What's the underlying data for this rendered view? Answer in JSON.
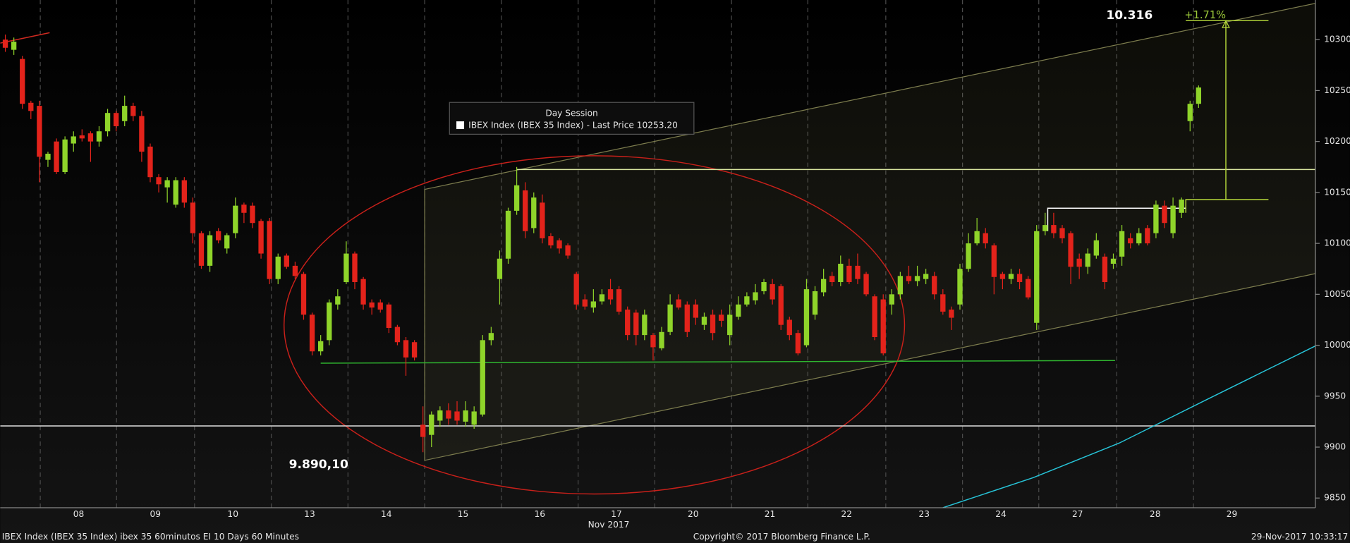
{
  "chart_data": {
    "type": "candlestick",
    "legend": {
      "title": "Day Session",
      "label": "IBEX Index (IBEX 35 Index) - Last Price 10253.20"
    },
    "annotations": [
      "10.316",
      "+1.71%",
      "9.890,10"
    ],
    "x_label": "Nov 2017",
    "footer": {
      "left": "IBEX Index (IBEX 35 Index) ibex 35 60minutos EI 10 Days 60 Minutes",
      "center": "Copyright© 2017 Bloomberg Finance L.P.",
      "right": "29-Nov-2017 10:33:17"
    },
    "colors": {
      "up": "#8fd42a",
      "down": "#e3231b"
    },
    "xlim": [
      -0.6,
      153.7
    ],
    "ylim": [
      9840.5,
      10338.9
    ],
    "yticks": [
      9850,
      9900,
      9950,
      10000,
      10050,
      10100,
      10150,
      10200,
      10250,
      10300
    ],
    "xticks": [
      {
        "value": 8.6,
        "label": "08"
      },
      {
        "value": 17.6,
        "label": "09"
      },
      {
        "value": 26.7,
        "label": "10"
      },
      {
        "value": 35.7,
        "label": "13"
      },
      {
        "value": 44.7,
        "label": "14"
      },
      {
        "value": 53.7,
        "label": "15"
      },
      {
        "value": 62.7,
        "label": "16"
      },
      {
        "value": 71.7,
        "label": "17"
      },
      {
        "value": 80.7,
        "label": "20"
      },
      {
        "value": 89.7,
        "label": "21"
      },
      {
        "value": 98.7,
        "label": "22"
      },
      {
        "value": 107.8,
        "label": "23"
      },
      {
        "value": 116.8,
        "label": "24"
      },
      {
        "value": 125.8,
        "label": "27"
      },
      {
        "value": 134.9,
        "label": "28"
      },
      {
        "value": 143.9,
        "label": "29"
      }
    ],
    "x": [
      0,
      1,
      2,
      3,
      4,
      5,
      6,
      7,
      8,
      9,
      10,
      11,
      12,
      13,
      14,
      15,
      16,
      17,
      18,
      19,
      20,
      21,
      22,
      23,
      24,
      25,
      26,
      27,
      28,
      29,
      30,
      31,
      32,
      33,
      34,
      35,
      36,
      37,
      38,
      39,
      40,
      41,
      42,
      43,
      44,
      45,
      46,
      47,
      48,
      49,
      50,
      51,
      52,
      53,
      54,
      55,
      56,
      57,
      58,
      59,
      60,
      61,
      62,
      63,
      64,
      65,
      66,
      67,
      68,
      69,
      70,
      71,
      72,
      73,
      74,
      75,
      76,
      77,
      78,
      79,
      80,
      81,
      82,
      83,
      84,
      85,
      86,
      87,
      88,
      89,
      90,
      91,
      92,
      93,
      94,
      95,
      96,
      97,
      98,
      99,
      100,
      101,
      102,
      103,
      104,
      105,
      106,
      107,
      108,
      109,
      110,
      111,
      112,
      113,
      114,
      115,
      116,
      117,
      118,
      119,
      120,
      121,
      122,
      123,
      124,
      125,
      126,
      127,
      128,
      129,
      130,
      131,
      132,
      133,
      134,
      135,
      136,
      137,
      138,
      139,
      140
    ],
    "open": [
      10300,
      10290,
      10281,
      10238,
      10235,
      10182,
      10200,
      10170,
      10198,
      10206,
      10208,
      10200,
      10210,
      10228,
      10220,
      10235,
      10225,
      10195,
      10165,
      10155,
      10138,
      10162,
      10140,
      10110,
      10078,
      10112,
      10095,
      10110,
      10138,
      10137,
      10122,
      10122,
      10065,
      10088,
      10078,
      10070,
      10030,
      9994,
      10005,
      10040,
      10062,
      10090,
      10065,
      10042,
      10042,
      10040,
      10018,
      10005,
      10003,
      9922,
      9912,
      9926,
      9936,
      9935,
      9925,
      9922,
      9932,
      10005,
      10065,
      10085,
      10132,
      10152,
      10115,
      10140,
      10107,
      10103,
      10098,
      10070,
      10045,
      10037,
      10043,
      10055,
      10055,
      10035,
      10032,
      10010,
      10010,
      9997,
      10013,
      10045,
      10040,
      10040,
      10020,
      10030,
      10030,
      10010,
      10028,
      10040,
      10044,
      10053,
      10060,
      10058,
      10025,
      10012,
      10000,
      10030,
      10052,
      10068,
      10062,
      10078,
      10078,
      10070,
      10048,
      10045,
      10040,
      10050,
      10068,
      10063,
      10065,
      10068,
      10050,
      10035,
      10040,
      10075,
      10100,
      10110,
      10098,
      10070,
      10065,
      10070,
      10065,
      10022,
      10112,
      10118,
      10115,
      10110,
      10085,
      10077,
      10088,
      10087,
      10080,
      10087,
      10105,
      10100,
      10115,
      10110,
      10137,
      10110,
      10130,
      10220,
      10237
    ],
    "high": [
      10305,
      10302,
      10284,
      10240,
      10240,
      10190,
      10203,
      10205,
      10210,
      10212,
      10210,
      10215,
      10232,
      10230,
      10245,
      10238,
      10230,
      10198,
      10168,
      10165,
      10165,
      10165,
      10145,
      10112,
      10112,
      10115,
      10110,
      10145,
      10140,
      10140,
      10124,
      10125,
      10090,
      10090,
      10082,
      10072,
      10032,
      10010,
      10045,
      10055,
      10102,
      10092,
      10067,
      10045,
      10045,
      10042,
      10020,
      10008,
      10005,
      9940,
      9935,
      9940,
      9943,
      9945,
      9945,
      9940,
      10010,
      10018,
      10093,
      10135,
      10175,
      10160,
      10150,
      10148,
      10110,
      10105,
      10100,
      10072,
      10050,
      10055,
      10055,
      10065,
      10058,
      10038,
      10035,
      10035,
      10012,
      10018,
      10050,
      10050,
      10043,
      10045,
      10032,
      10035,
      10035,
      10040,
      10048,
      10052,
      10060,
      10065,
      10065,
      10060,
      10028,
      10015,
      10065,
      10058,
      10075,
      10072,
      10088,
      10085,
      10090,
      10072,
      10050,
      10050,
      10055,
      10072,
      10078,
      10078,
      10075,
      10072,
      10055,
      10038,
      10080,
      10110,
      10125,
      10115,
      10100,
      10072,
      10075,
      10075,
      10068,
      10118,
      10130,
      10130,
      10118,
      10112,
      10090,
      10095,
      10110,
      10090,
      10090,
      10118,
      10110,
      10115,
      10118,
      10142,
      10142,
      10145,
      10145,
      10240,
      10255
    ],
    "low": [
      10288,
      10285,
      10232,
      10222,
      10160,
      10175,
      10168,
      10168,
      10190,
      10200,
      10180,
      10195,
      10205,
      10210,
      10215,
      10220,
      10180,
      10160,
      10150,
      10140,
      10135,
      10135,
      10100,
      10075,
      10072,
      10100,
      10090,
      10105,
      10120,
      10115,
      10085,
      10060,
      10060,
      10075,
      10065,
      10025,
      9990,
      9990,
      10000,
      10035,
      10060,
      10055,
      10035,
      10030,
      10032,
      10012,
      10000,
      9970,
      9985,
      9895,
      9900,
      9920,
      9922,
      9922,
      9920,
      9918,
      9930,
      10000,
      10040,
      10080,
      10128,
      10105,
      10110,
      10100,
      10095,
      10090,
      10085,
      10035,
      10035,
      10032,
      10040,
      10040,
      10030,
      10005,
      10000,
      10005,
      9985,
      9995,
      10010,
      10035,
      10008,
      10020,
      10015,
      10005,
      10018,
      10000,
      10025,
      10038,
      10040,
      10050,
      10040,
      10015,
      10005,
      9990,
      9998,
      10025,
      10048,
      10058,
      10058,
      10060,
      10060,
      10048,
      10005,
      9990,
      10030,
      10045,
      10060,
      10058,
      10060,
      10045,
      10030,
      10015,
      10035,
      10072,
      10098,
      10095,
      10050,
      10055,
      10060,
      10055,
      10045,
      10015,
      10108,
      10105,
      10100,
      10060,
      10065,
      10070,
      10085,
      10055,
      10075,
      10078,
      10095,
      10098,
      10098,
      10105,
      10115,
      10105,
      10125,
      10210,
      10233
    ],
    "close": [
      10292,
      10298,
      10237,
      10230,
      10185,
      10188,
      10170,
      10202,
      10205,
      10203,
      10200,
      10210,
      10228,
      10215,
      10235,
      10225,
      10190,
      10165,
      10158,
      10162,
      10162,
      10140,
      10110,
      10078,
      10108,
      10103,
      10108,
      10137,
      10130,
      10120,
      10090,
      10065,
      10087,
      10077,
      10068,
      10030,
      9994,
      10004,
      10042,
      10048,
      10090,
      10062,
      10040,
      10037,
      10035,
      10017,
      10003,
      9988,
      9988,
      9910,
      9932,
      9936,
      9928,
      9926,
      9936,
      9935,
      10005,
      10012,
      10085,
      10132,
      10157,
      10112,
      10145,
      10105,
      10098,
      10095,
      10088,
      10040,
      10038,
      10043,
      10050,
      10045,
      10033,
      10010,
      10010,
      10030,
      9998,
      10013,
      10040,
      10037,
      10013,
      10027,
      10028,
      10012,
      10024,
      10030,
      10040,
      10048,
      10052,
      10062,
      10045,
      10020,
      10010,
      9992,
      10055,
      10053,
      10065,
      10062,
      10080,
      10062,
      10065,
      10050,
      10008,
      9992,
      10050,
      10068,
      10063,
      10068,
      10070,
      10050,
      10033,
      10027,
      10075,
      10100,
      10112,
      10100,
      10067,
      10065,
      10070,
      10062,
      10047,
      10112,
      10118,
      10110,
      10105,
      10077,
      10077,
      10090,
      10103,
      10062,
      10085,
      10112,
      10100,
      10110,
      10100,
      10138,
      10120,
      10137,
      10143,
      10237,
      10253
    ],
    "overlays": [
      {
        "shape": "band",
        "color": "#7d7d4e",
        "x": [
          49.2,
          153.7
        ],
        "upper": [
          10153,
          10335.6
        ],
        "lower": [
          9887,
          10070.3
        ]
      },
      {
        "shape": "ellipse",
        "color": "#c8201a",
        "cx": 69.1,
        "cy": 10020,
        "rx": 36.4,
        "ry": 166
      },
      {
        "shape": "line",
        "color": "#2fb52f",
        "x": [
          37,
          130.2
        ],
        "y": [
          9982.4,
          9985
        ]
      },
      {
        "shape": "line",
        "color": "#e0e0e0",
        "x": [
          -0.6,
          153.7
        ],
        "y": [
          9920.8,
          9920.8
        ]
      },
      {
        "shape": "line",
        "color": "#d8e6a0",
        "x": [
          60,
          153.7
        ],
        "y": [
          10172.5,
          10172.5
        ]
      },
      {
        "shape": "line",
        "color": "#ffffff",
        "x": [
          122.3,
          122.3,
          138.5
        ],
        "y": [
          10112,
          10134.5,
          10134.5
        ]
      },
      {
        "shape": "line",
        "color": "#b5d83a",
        "x": [
          138.5,
          138.5,
          148.2
        ],
        "y": [
          10130,
          10143,
          10143
        ]
      },
      {
        "shape": "line",
        "color": "#b5d83a",
        "x": [
          138.5,
          148.2
        ],
        "y": [
          10318.6,
          10318.6
        ]
      },
      {
        "shape": "line",
        "color": "#b5d83a",
        "x": [
          143.2,
          143.2
        ],
        "y": [
          10143,
          10318.6
        ]
      },
      {
        "shape": "line",
        "color": "#27c4d8",
        "x": [
          110,
          120.6,
          130.7,
          140.8,
          153.7
        ],
        "y": [
          9840.5,
          9870,
          9904,
          9946,
          9999.3
        ]
      },
      {
        "shape": "line",
        "color": "#d02a20",
        "x": [
          -0.6,
          5.2
        ],
        "y": [
          10296.6,
          10306.8
        ]
      }
    ]
  }
}
